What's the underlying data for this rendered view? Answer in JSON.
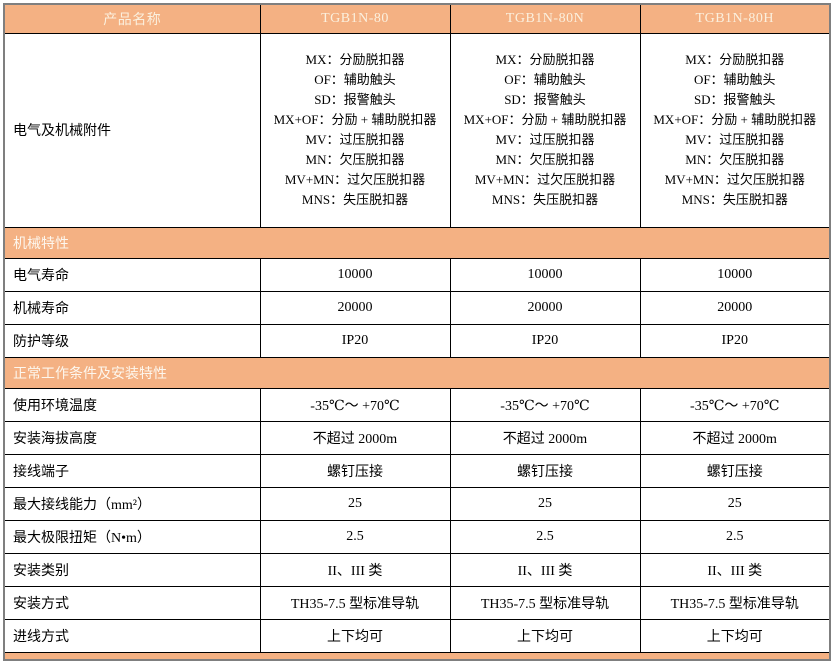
{
  "colors": {
    "band_fill": "#F4B183",
    "header_text": "#FBF0DE",
    "band_text": "#FDF7EE",
    "grid_line": "#000000",
    "outer_border": "#7F7F7F",
    "body_text": "#000000",
    "cell_fill": "#FFFFFF"
  },
  "table": {
    "header": {
      "product_name_label": "产品名称",
      "models": [
        "TGB1N-80",
        "TGB1N-80N",
        "TGB1N-80H"
      ]
    },
    "accessories": {
      "label": "电气及机械附件",
      "columns": [
        [
          "MX：分励脱扣器",
          "OF：辅助触头",
          "SD：报警触头",
          "MX+OF：分励 + 辅助脱扣器",
          "MV：过压脱扣器",
          "MN：欠压脱扣器",
          "MV+MN：过欠压脱扣器",
          "MNS：失压脱扣器"
        ],
        [
          "MX：分励脱扣器",
          "OF：辅助触头",
          "SD：报警触头",
          "MX+OF：分励 + 辅助脱扣器",
          "MV：过压脱扣器",
          "MN：欠压脱扣器",
          "MV+MN：过欠压脱扣器",
          "MNS：失压脱扣器"
        ],
        [
          "MX：分励脱扣器",
          "OF：辅助触头",
          "SD：报警触头",
          "MX+OF：分励 + 辅助脱扣器",
          "MV：过压脱扣器",
          "MN：欠压脱扣器",
          "MV+MN：过欠压脱扣器",
          "MNS：失压脱扣器"
        ]
      ]
    },
    "sections": [
      {
        "title": "机械特性",
        "rows": [
          {
            "label": "电气寿命",
            "values": [
              "10000",
              "10000",
              "10000"
            ]
          },
          {
            "label": "机械寿命",
            "values": [
              "20000",
              "20000",
              "20000"
            ]
          },
          {
            "label": "防护等级",
            "values": [
              "IP20",
              "IP20",
              "IP20"
            ]
          }
        ]
      },
      {
        "title": "正常工作条件及安装特性",
        "rows": [
          {
            "label": "使用环境温度",
            "values": [
              "-35℃～ +70℃",
              "-35℃～ +70℃",
              "-35℃～ +70℃"
            ]
          },
          {
            "label": "安装海拔高度",
            "values": [
              "不超过 2000m",
              "不超过 2000m",
              "不超过 2000m"
            ]
          },
          {
            "label": "接线端子",
            "values": [
              "螺钉压接",
              "螺钉压接",
              "螺钉压接"
            ]
          },
          {
            "label": "最大接线能力（mm²）",
            "values": [
              "25",
              "25",
              "25"
            ]
          },
          {
            "label": "最大极限扭矩（N•m）",
            "values": [
              "2.5",
              "2.5",
              "2.5"
            ]
          },
          {
            "label": "安装类别",
            "values": [
              "II、III 类",
              "II、III 类",
              "II、III 类"
            ]
          },
          {
            "label": "安装方式",
            "values": [
              "TH35-7.5 型标准导轨",
              "TH35-7.5 型标准导轨",
              "TH35-7.5 型标准导轨"
            ]
          },
          {
            "label": "进线方式",
            "values": [
              "上下均可",
              "上下均可",
              "上下均可"
            ]
          }
        ]
      }
    ]
  }
}
